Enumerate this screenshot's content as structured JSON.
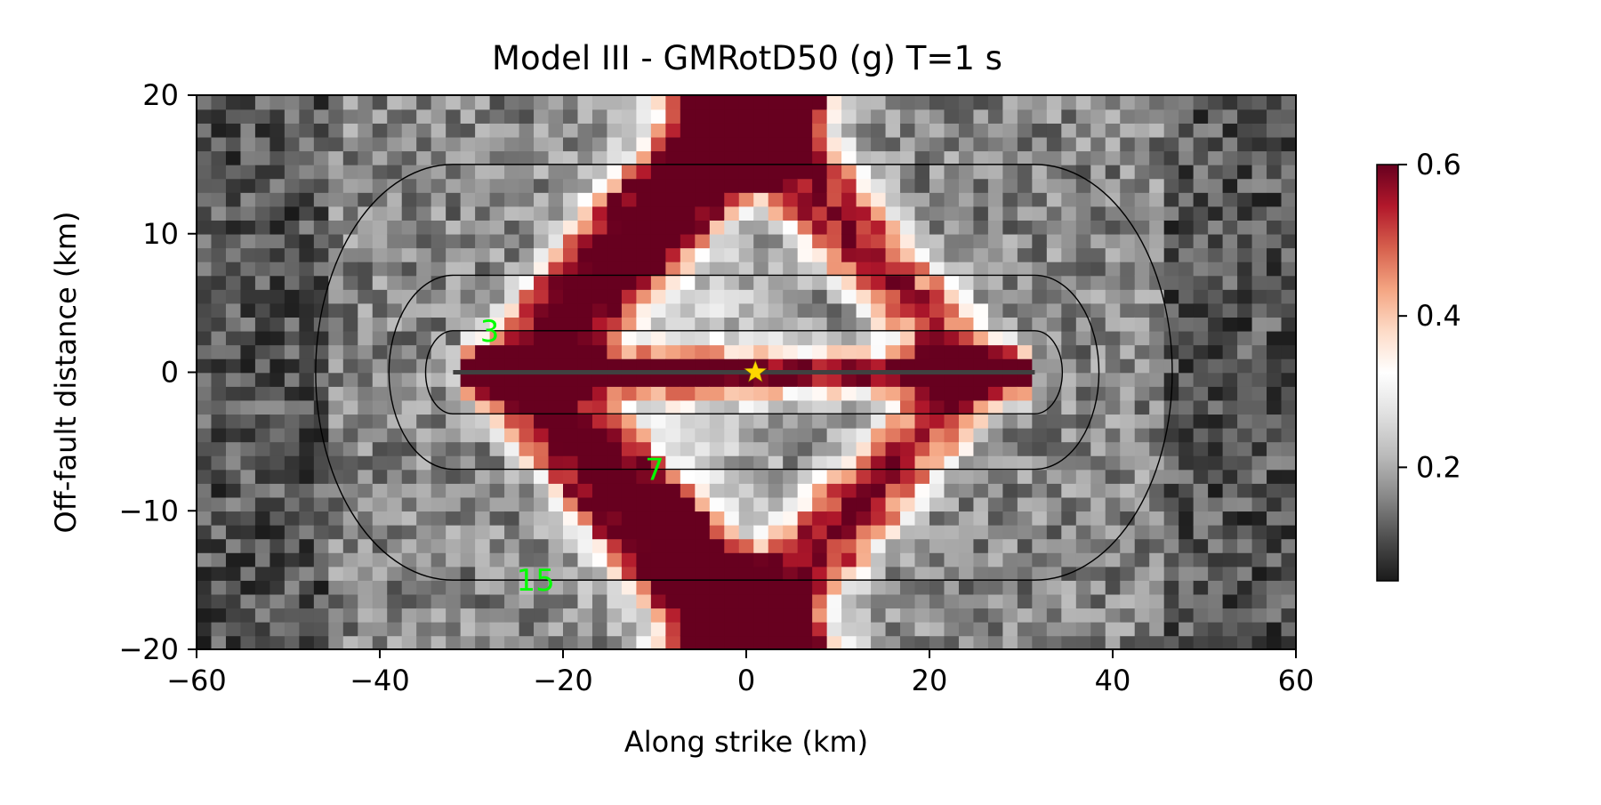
{
  "chart_data": {
    "type": "heatmap",
    "title": "Model III - GMRotD50 (g) T=1 s",
    "xlabel": "Along strike (km)",
    "ylabel": "Off-fault distance (km)",
    "xlim": [
      -60,
      60
    ],
    "ylim": [
      -20,
      20
    ],
    "xticks": [
      -60,
      -40,
      -20,
      0,
      20,
      40,
      60
    ],
    "xtick_labels": [
      "−60",
      "−40",
      "−20",
      "0",
      "20",
      "40",
      "60"
    ],
    "yticks": [
      -20,
      -10,
      0,
      10,
      20
    ],
    "ytick_labels": [
      "−20",
      "−10",
      "0",
      "10",
      "20"
    ],
    "colorbar": {
      "range": [
        0.05,
        0.6
      ],
      "ticks": [
        0.2,
        0.4,
        0.6
      ],
      "tick_labels": [
        "0.2",
        "0.4",
        "0.6"
      ],
      "colormap": "RdGy_r",
      "stops": [
        "#1a1a1a",
        "#4d4d4d",
        "#878787",
        "#bababa",
        "#e0e0e0",
        "#ffffff",
        "#fddbc7",
        "#f4a582",
        "#d6604d",
        "#b2182b",
        "#67001f"
      ]
    },
    "fault_trace": {
      "x": [
        -32,
        31.5
      ],
      "y": 0,
      "color": "#404040"
    },
    "hypocenter": {
      "x": 1,
      "y": 0,
      "color": "#ffd700"
    },
    "distance_contours": [
      {
        "distance": 3,
        "label": "3",
        "label_position": [
          -28,
          3
        ]
      },
      {
        "distance": 7,
        "label": "7",
        "label_position": [
          -10,
          -7
        ]
      },
      {
        "distance": 15,
        "label": "15",
        "label_position": [
          -23,
          -15
        ]
      }
    ],
    "contour_label_color": "#00ff00",
    "grid": false,
    "description_field_model": "strong values along X-shaped Mach-front bands crossing the fault near x=±25, weaker in the center, grey elsewhere"
  }
}
